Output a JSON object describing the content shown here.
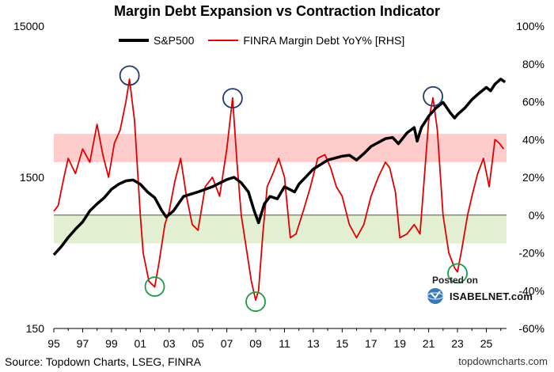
{
  "chart_data": {
    "type": "line",
    "title": "Margin Debt Expansion vs Contraction Indicator",
    "x_ticks": [
      "95",
      "97",
      "99",
      "01",
      "03",
      "05",
      "07",
      "09",
      "11",
      "13",
      "15",
      "17",
      "19",
      "21",
      "23",
      "25"
    ],
    "x_range": [
      1995,
      2026.4
    ],
    "left_axis": {
      "scale": "log",
      "ticks": [
        "15000",
        "1500",
        "150"
      ],
      "range": [
        150,
        15000
      ]
    },
    "right_axis": {
      "ticks": [
        "100%",
        "80%",
        "60%",
        "40%",
        "20%",
        "0%",
        "-20%",
        "-40%",
        "-60%"
      ],
      "range": [
        -60,
        100
      ]
    },
    "bands": [
      {
        "name": "expansion-band",
        "from": 28,
        "to": 43,
        "color": "#ffcccc"
      },
      {
        "name": "contraction-band",
        "from": -15,
        "to": 0,
        "color": "#e2efd0"
      }
    ],
    "series": [
      {
        "name": "S&P500",
        "axis": "left",
        "color": "#000000",
        "x": [
          1995.0,
          1995.5,
          1996.0,
          1996.5,
          1997.0,
          1997.5,
          1998.0,
          1998.5,
          1999.0,
          1999.5,
          2000.0,
          2000.5,
          2001.0,
          2001.5,
          2002.0,
          2002.5,
          2002.8,
          2003.3,
          2004.0,
          2005.0,
          2006.0,
          2007.0,
          2007.5,
          2008.0,
          2008.5,
          2008.9,
          2009.2,
          2009.6,
          2010.0,
          2010.5,
          2011.0,
          2011.7,
          2012.0,
          2013.0,
          2014.0,
          2015.0,
          2015.5,
          2016.0,
          2016.5,
          2017.0,
          2018.0,
          2018.5,
          2018.9,
          2019.5,
          2020.0,
          2020.2,
          2020.5,
          2021.0,
          2021.5,
          2022.0,
          2022.5,
          2022.8,
          2023.0,
          2023.5,
          2024.0,
          2024.5,
          2025.0,
          2025.3,
          2025.6,
          2026.0,
          2026.3
        ],
        "values": [
          460,
          520,
          600,
          680,
          760,
          900,
          1000,
          1100,
          1250,
          1350,
          1420,
          1440,
          1350,
          1200,
          1100,
          900,
          820,
          900,
          1120,
          1200,
          1300,
          1450,
          1500,
          1380,
          1200,
          900,
          750,
          1000,
          1120,
          1080,
          1300,
          1200,
          1350,
          1700,
          1950,
          2070,
          2100,
          1950,
          2150,
          2400,
          2700,
          2750,
          2500,
          2950,
          3200,
          2600,
          3200,
          3800,
          4300,
          4700,
          4000,
          3700,
          3900,
          4300,
          4900,
          5400,
          5900,
          5600,
          6200,
          6700,
          6400
        ]
      },
      {
        "name": "FINRA Margin Debt YoY% [RHS]",
        "axis": "right",
        "color": "#e00000",
        "x": [
          1995.0,
          1995.3,
          1995.7,
          1996.0,
          1996.5,
          1997.0,
          1997.5,
          1998.0,
          1998.4,
          1998.8,
          1999.2,
          1999.6,
          2000.0,
          2000.25,
          2000.6,
          2001.0,
          2001.2,
          2001.6,
          2002.0,
          2002.3,
          2002.7,
          2003.0,
          2003.4,
          2003.8,
          2004.2,
          2004.6,
          2005.0,
          2005.5,
          2006.0,
          2006.5,
          2007.0,
          2007.4,
          2007.7,
          2008.0,
          2008.3,
          2008.7,
          2009.0,
          2009.2,
          2009.5,
          2009.8,
          2010.2,
          2010.6,
          2011.0,
          2011.4,
          2011.8,
          2012.3,
          2012.8,
          2013.3,
          2013.8,
          2014.2,
          2014.6,
          2015.0,
          2015.5,
          2016.0,
          2016.5,
          2017.0,
          2017.5,
          2018.0,
          2018.3,
          2018.7,
          2019.0,
          2019.5,
          2020.0,
          2020.4,
          2020.8,
          2021.0,
          2021.3,
          2021.6,
          2022.0,
          2022.4,
          2022.8,
          2023.0,
          2023.3,
          2023.7,
          2024.0,
          2024.4,
          2024.8,
          2025.2,
          2025.6,
          2025.9,
          2026.2
        ],
        "values": [
          2,
          5,
          20,
          30,
          22,
          35,
          28,
          48,
          32,
          20,
          38,
          45,
          60,
          72,
          50,
          0,
          -20,
          -35,
          -38,
          -25,
          -5,
          2,
          18,
          30,
          10,
          -5,
          -8,
          15,
          20,
          10,
          35,
          62,
          28,
          0,
          -15,
          -35,
          -45,
          -40,
          -10,
          15,
          22,
          30,
          20,
          -12,
          -10,
          2,
          15,
          30,
          32,
          25,
          15,
          10,
          -5,
          -12,
          -5,
          10,
          20,
          28,
          25,
          12,
          -12,
          -10,
          -5,
          -10,
          30,
          50,
          62,
          45,
          0,
          -20,
          -28,
          -30,
          -18,
          0,
          10,
          22,
          30,
          15,
          40,
          38,
          35
        ]
      }
    ]
  },
  "legend": {
    "sp500": "S&P500",
    "finra": "FINRA Margin Debt YoY% [RHS]"
  },
  "source": "Source: Topdown Charts, LSEG, FINRA",
  "credit": "topdowncharts.com",
  "badge": {
    "posted": "Posted on",
    "site": "ISABELNET.com"
  },
  "colors": {
    "sp500": "#000000",
    "finra": "#e00000",
    "peak_circle": "#1f3a6e",
    "trough_circle": "#1a9a46"
  },
  "annotations": {
    "peaks": [
      {
        "x": 2000.25,
        "y": 73
      },
      {
        "x": 2007.4,
        "y": 61
      },
      {
        "x": 2021.3,
        "y": 62
      }
    ],
    "troughs": [
      {
        "x": 2002.0,
        "y": -37
      },
      {
        "x": 2009.0,
        "y": -45
      },
      {
        "x": 2023.0,
        "y": -30
      }
    ]
  }
}
